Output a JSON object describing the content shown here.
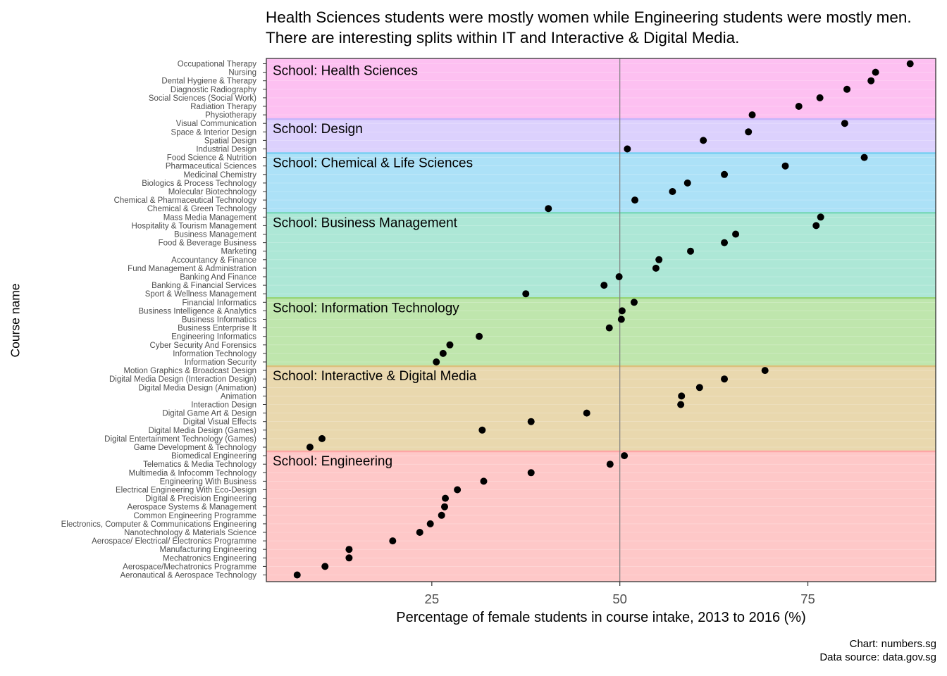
{
  "chart_data": {
    "type": "scatter",
    "title": "Health Sciences students were mostly women while Engineering students were mostly men. There are interesting splits within IT and Interactive & Digital Media.",
    "xlabel": "Percentage of female students in course intake, 2013 to 2016 (%)",
    "ylabel": "Course name",
    "xlim": [
      3,
      92
    ],
    "xticks": [
      25,
      50,
      75
    ],
    "reference_line_x": 50,
    "grid": false,
    "caption": [
      "Chart: numbers.sg",
      "Data source: data.gov.sg"
    ],
    "groups": [
      {
        "label": "School: Health Sciences",
        "color": "#fb9ae8",
        "points": [
          {
            "course": "Occupational Therapy",
            "value": 88.6
          },
          {
            "course": "Nursing",
            "value": 84.0
          },
          {
            "course": "Dental Hygiene & Therapy",
            "value": 83.4
          },
          {
            "course": "Diagnostic Radiography",
            "value": 80.2
          },
          {
            "course": "Social Sciences (Social Work)",
            "value": 76.6
          },
          {
            "course": "Radiation Therapy",
            "value": 73.8
          },
          {
            "course": "Physiotherapy",
            "value": 67.6
          }
        ]
      },
      {
        "label": "School: Design",
        "color": "#c6b5fb",
        "points": [
          {
            "course": "Visual Communication",
            "value": 79.9
          },
          {
            "course": "Space & Interior Design",
            "value": 67.1
          },
          {
            "course": "Spatial Design",
            "value": 61.1
          },
          {
            "course": "Industrial Design",
            "value": 51.0
          }
        ]
      },
      {
        "label": "School: Chemical & Life Sciences",
        "color": "#79cff2",
        "points": [
          {
            "course": "Food Science & Nutrition",
            "value": 82.5
          },
          {
            "course": "Pharmaceutical Sciences",
            "value": 72.0
          },
          {
            "course": "Medicinal Chemistry",
            "value": 63.9
          },
          {
            "course": "Biologics & Process Technology",
            "value": 59.0
          },
          {
            "course": "Molecular Biotechnology",
            "value": 57.0
          },
          {
            "course": "Chemical & Pharmaceutical Technology",
            "value": 52.0
          },
          {
            "course": "Chemical & Green Technology",
            "value": 40.5
          }
        ]
      },
      {
        "label": "School: Business Management",
        "color": "#7bd8bd",
        "points": [
          {
            "course": "Mass Media Management",
            "value": 76.7
          },
          {
            "course": "Hospitality & Tourism Management",
            "value": 76.1
          },
          {
            "course": "Business Management",
            "value": 65.4
          },
          {
            "course": "Food & Beverage Business",
            "value": 63.9
          },
          {
            "course": "Marketing",
            "value": 59.4
          },
          {
            "course": "Accountancy & Finance",
            "value": 55.2
          },
          {
            "course": "Fund Management & Administration",
            "value": 54.8
          },
          {
            "course": "Banking And Finance",
            "value": 49.9
          },
          {
            "course": "Banking & Financial Services",
            "value": 47.9
          },
          {
            "course": "Sport & Wellness Management",
            "value": 37.5
          }
        ]
      },
      {
        "label": "School: Information Technology",
        "color": "#98d67a",
        "points": [
          {
            "course": "Financial Informatics",
            "value": 51.9
          },
          {
            "course": "Business Intelligence & Analytics",
            "value": 50.3
          },
          {
            "course": "Business Informatics",
            "value": 50.2
          },
          {
            "course": "Business Enterprise It",
            "value": 48.6
          },
          {
            "course": "Engineering Informatics",
            "value": 31.3
          },
          {
            "course": "Cyber Security And Forensics",
            "value": 27.4
          },
          {
            "course": "Information Technology",
            "value": 26.5
          },
          {
            "course": "Information Security",
            "value": 25.6
          }
        ]
      },
      {
        "label": "School: Interactive & Digital Media",
        "color": "#dcc07d",
        "points": [
          {
            "course": "Motion Graphics & Broadcast Design",
            "value": 69.3
          },
          {
            "course": "Digital Media Design (Interaction Design)",
            "value": 63.9
          },
          {
            "course": "Digital Media Design (Animation)",
            "value": 60.6
          },
          {
            "course": "Animation",
            "value": 58.2
          },
          {
            "course": "Interaction Design",
            "value": 58.1
          },
          {
            "course": "Digital Game Art & Design",
            "value": 45.6
          },
          {
            "course": "Digital Visual Effects",
            "value": 38.2
          },
          {
            "course": "Digital Media Design (Games)",
            "value": 31.7
          },
          {
            "course": "Digital Entertainment Technology (Games)",
            "value": 10.4
          },
          {
            "course": "Game Development & Technology",
            "value": 8.8
          }
        ]
      },
      {
        "label": "School: Engineering",
        "color": "#fda6a6",
        "points": [
          {
            "course": "Biomedical Engineering",
            "value": 50.6
          },
          {
            "course": "Telematics & Media Technology",
            "value": 48.7
          },
          {
            "course": "Multimedia & Infocomm Technology",
            "value": 38.2
          },
          {
            "course": "Engineering With Business",
            "value": 31.9
          },
          {
            "course": "Electrical Engineering With Eco-Design",
            "value": 28.4
          },
          {
            "course": "Digital & Precision Engineering",
            "value": 26.8
          },
          {
            "course": "Aerospace Systems & Management",
            "value": 26.7
          },
          {
            "course": "Common Engineering Programme",
            "value": 26.3
          },
          {
            "course": "Electronics, Computer & Communications Engineering",
            "value": 24.8
          },
          {
            "course": "Nanotechnology & Materials Science",
            "value": 23.4
          },
          {
            "course": "Aerospace/ Electrical/ Electronics Programme",
            "value": 19.8
          },
          {
            "course": "Manufacturing Engineering",
            "value": 14.0
          },
          {
            "course": "Mechatronics Engineering",
            "value": 14.0
          },
          {
            "course": "Aerospace/Mechatronics Programme",
            "value": 10.8
          },
          {
            "course": "Aeronautical & Aerospace Technology",
            "value": 7.1
          }
        ]
      }
    ]
  }
}
